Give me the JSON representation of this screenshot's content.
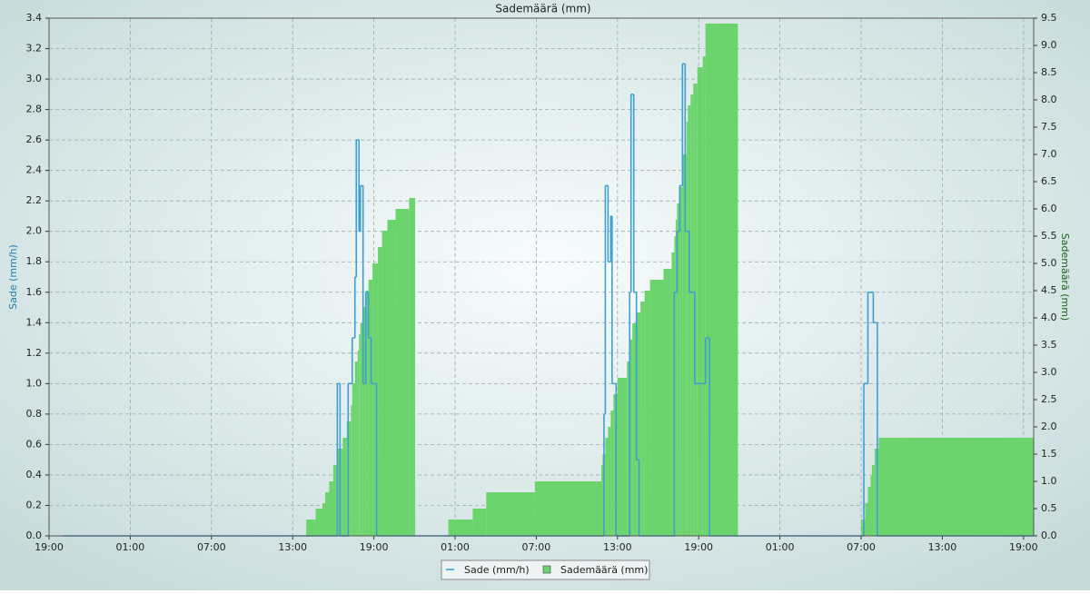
{
  "chart_data": {
    "type": "step",
    "title": "Sademäärä (mm)",
    "ylabel": "Sade (mm/h)",
    "y2label": "Sademäärä (mm)",
    "xlim": [
      0,
      72.75
    ],
    "xticks": [
      {
        "value": 0,
        "label": "19:00"
      },
      {
        "value": 6,
        "label": "01:00"
      },
      {
        "value": 12,
        "label": "07:00"
      },
      {
        "value": 18,
        "label": "13:00"
      },
      {
        "value": 24,
        "label": "19:00"
      },
      {
        "value": 30,
        "label": "01:00"
      },
      {
        "value": 36,
        "label": "07:00"
      },
      {
        "value": 42,
        "label": "13:00"
      },
      {
        "value": 48,
        "label": "19:00"
      },
      {
        "value": 54,
        "label": "01:00"
      },
      {
        "value": 60,
        "label": "07:00"
      },
      {
        "value": 66,
        "label": "13:00"
      },
      {
        "value": 72,
        "label": "19:00"
      }
    ],
    "ylim": [
      0,
      3.4
    ],
    "yticks": [
      {
        "value": 0,
        "label": "0.0"
      },
      0.2,
      0.4,
      0.6,
      0.8,
      {
        "value": 1,
        "label": "1.0"
      },
      1.2,
      1.4,
      1.6,
      1.8,
      {
        "value": 2,
        "label": "2.0"
      },
      2.2,
      2.4,
      2.6,
      2.8,
      {
        "value": 3,
        "label": "3.0"
      },
      3.2,
      3.4
    ],
    "y2lim": [
      0,
      9.5
    ],
    "y2ticks": [
      {
        "value": 0,
        "label": "0.0"
      },
      0.5,
      {
        "value": 1,
        "label": "1.0"
      },
      1.5,
      {
        "value": 2,
        "label": "2.0"
      },
      2.5,
      {
        "value": 3,
        "label": "3.0"
      },
      3.5,
      {
        "value": 4,
        "label": "4.0"
      },
      4.5,
      {
        "value": 5,
        "label": "5.0"
      },
      5.5,
      {
        "value": 6,
        "label": "6.0"
      },
      6.5,
      {
        "value": 7,
        "label": "7.0"
      },
      7.5,
      {
        "value": 8,
        "label": "8.0"
      },
      8.5,
      {
        "value": 9,
        "label": "9.0"
      },
      9.5
    ],
    "grid": true,
    "series": [
      {
        "name": "Sademäärä (mm)",
        "color": "#6cd46c",
        "style": "area",
        "axis": "y2",
        "x": [
          0,
          19.0,
          19.7,
          20.2,
          20.4,
          20.7,
          21.0,
          21.3,
          21.7,
          22.0,
          22.3,
          22.4,
          22.6,
          22.8,
          22.9,
          23.0,
          23.2,
          23.4,
          23.6,
          23.9,
          24.3,
          24.6,
          25.0,
          25.6,
          26.6,
          27.05,
          29.5,
          31.3,
          32.3,
          35.9,
          40.8,
          40.9,
          41.1,
          41.3,
          41.5,
          41.7,
          42.0,
          42.7,
          42.9,
          43.1,
          43.4,
          43.7,
          44.0,
          44.4,
          45.4,
          46.0,
          46.2,
          46.3,
          46.4,
          46.6,
          46.8,
          47.1,
          47.2,
          47.4,
          47.6,
          47.9,
          48.3,
          48.5,
          50.9,
          60.0,
          60.3,
          60.5,
          60.7,
          60.8,
          61.0,
          61.3
        ],
        "values": [
          0,
          0.3,
          0.5,
          0.6,
          0.8,
          1.0,
          1.3,
          1.6,
          1.8,
          2.1,
          2.4,
          2.8,
          3.2,
          3.4,
          3.7,
          3.9,
          4.2,
          4.5,
          4.7,
          5.0,
          5.3,
          5.6,
          5.8,
          6.0,
          6.2,
          0,
          0.3,
          0.5,
          0.8,
          1.0,
          1.3,
          1.5,
          1.8,
          2.0,
          2.3,
          2.6,
          2.9,
          3.2,
          3.6,
          3.9,
          4.1,
          4.3,
          4.5,
          4.7,
          4.9,
          5.2,
          5.5,
          5.8,
          6.1,
          6.4,
          7.0,
          7.6,
          7.9,
          8.1,
          8.3,
          8.6,
          8.8,
          9.4,
          0,
          0.3,
          0.6,
          0.9,
          1.1,
          1.3,
          1.6,
          1.8
        ]
      },
      {
        "name": "Sade (mm/h)",
        "color": "#3fa0d0",
        "style": "line",
        "axis": "y",
        "x": [
          1,
          21.3,
          21.5,
          22.1,
          22.4,
          22.6,
          22.7,
          22.9,
          23.0,
          23.2,
          23.4,
          23.6,
          23.8,
          24.2,
          41.0,
          41.1,
          41.3,
          41.5,
          41.6,
          41.9,
          42.9,
          43.0,
          43.2,
          43.4,
          43.6,
          46.2,
          46.4,
          46.6,
          46.8,
          47.0,
          47.3,
          47.7,
          48.5,
          48.8,
          60.2,
          60.5,
          60.9,
          61.2
        ],
        "values": [
          0,
          1.0,
          0,
          1.0,
          1.3,
          1.7,
          2.6,
          2.0,
          2.3,
          1.0,
          1.6,
          1.3,
          1.0,
          0,
          0.8,
          2.3,
          1.8,
          2.1,
          1.0,
          0,
          1.6,
          2.9,
          1.6,
          0.5,
          0,
          1.6,
          2.0,
          2.3,
          3.1,
          2.0,
          1.6,
          1.0,
          1.3,
          0,
          1.0,
          1.6,
          1.4,
          0
        ]
      }
    ]
  }
}
